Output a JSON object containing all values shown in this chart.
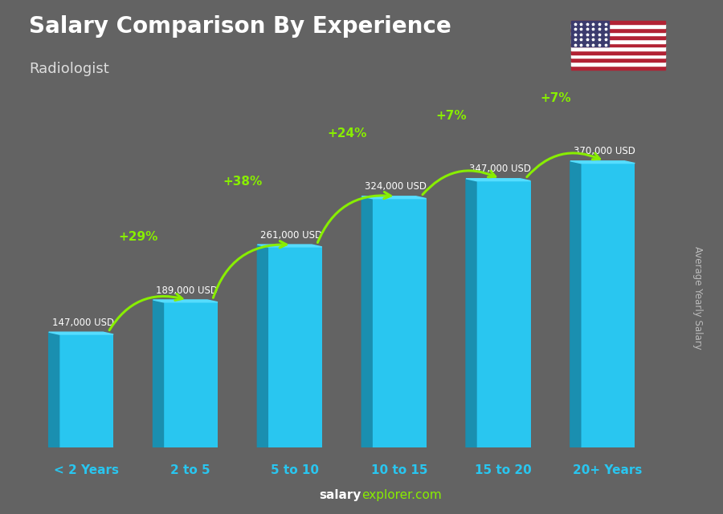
{
  "title": "Salary Comparison By Experience",
  "subtitle": "Radiologist",
  "ylabel": "Average Yearly Salary",
  "categories": [
    "< 2 Years",
    "2 to 5",
    "5 to 10",
    "10 to 15",
    "15 to 20",
    "20+ Years"
  ],
  "values": [
    147000,
    189000,
    261000,
    324000,
    347000,
    370000
  ],
  "value_labels": [
    "147,000 USD",
    "189,000 USD",
    "261,000 USD",
    "324,000 USD",
    "347,000 USD",
    "370,000 USD"
  ],
  "pct_changes": [
    "+29%",
    "+38%",
    "+24%",
    "+7%",
    "+7%"
  ],
  "face_color": "#29C6F0",
  "side_color": "#1A8FB0",
  "top_color": "#55DDFF",
  "background_color": "#636363",
  "title_color": "#ffffff",
  "subtitle_color": "#dddddd",
  "category_color": "#29C6F0",
  "value_label_color": "#ffffff",
  "pct_color": "#88ee00",
  "watermark_salary_color": "#ffffff",
  "watermark_explorer_color": "#88ee00",
  "ylabel_color": "#bbbbbb"
}
